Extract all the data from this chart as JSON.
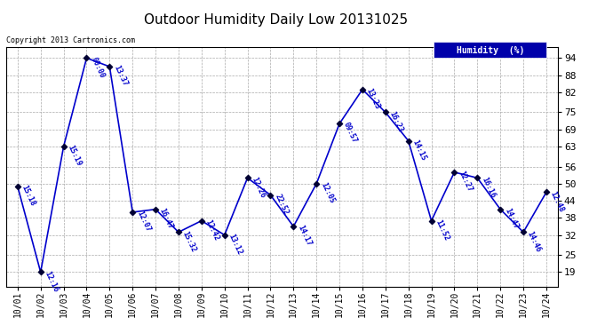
{
  "title": "Outdoor Humidity Daily Low 20131025",
  "copyright": "Copyright 2013 Cartronics.com",
  "legend_label": "Humidity  (%)",
  "x_labels": [
    "10/01",
    "10/02",
    "10/03",
    "10/04",
    "10/05",
    "10/06",
    "10/07",
    "10/08",
    "10/09",
    "10/10",
    "10/11",
    "10/12",
    "10/13",
    "10/14",
    "10/15",
    "10/16",
    "10/17",
    "10/18",
    "10/19",
    "10/20",
    "10/21",
    "10/22",
    "10/23",
    "10/24"
  ],
  "y_values": [
    49,
    19,
    63,
    94,
    91,
    40,
    41,
    33,
    37,
    32,
    52,
    46,
    35,
    50,
    71,
    83,
    75,
    65,
    37,
    54,
    52,
    41,
    33,
    47
  ],
  "point_labels": [
    "15:18",
    "12:16",
    "15:19",
    "00:00",
    "13:37",
    "12:07",
    "16:47",
    "15:32",
    "12:42",
    "13:12",
    "12:26",
    "22:52",
    "14:17",
    "12:05",
    "09:57",
    "13:23",
    "16:23",
    "14:15",
    "11:52",
    "12:27",
    "16:16",
    "14:47",
    "14:46",
    "12:48"
  ],
  "y_ticks": [
    19,
    25,
    32,
    38,
    44,
    50,
    56,
    63,
    69,
    75,
    82,
    88,
    94
  ],
  "line_color": "#0000cc",
  "marker_color": "#000033",
  "bg_color": "#ffffff",
  "grid_color": "#aaaaaa",
  "title_fontsize": 11,
  "legend_bg": "#0000aa",
  "legend_text_color": "#ffffff",
  "fig_width": 6.9,
  "fig_height": 3.75,
  "dpi": 100
}
